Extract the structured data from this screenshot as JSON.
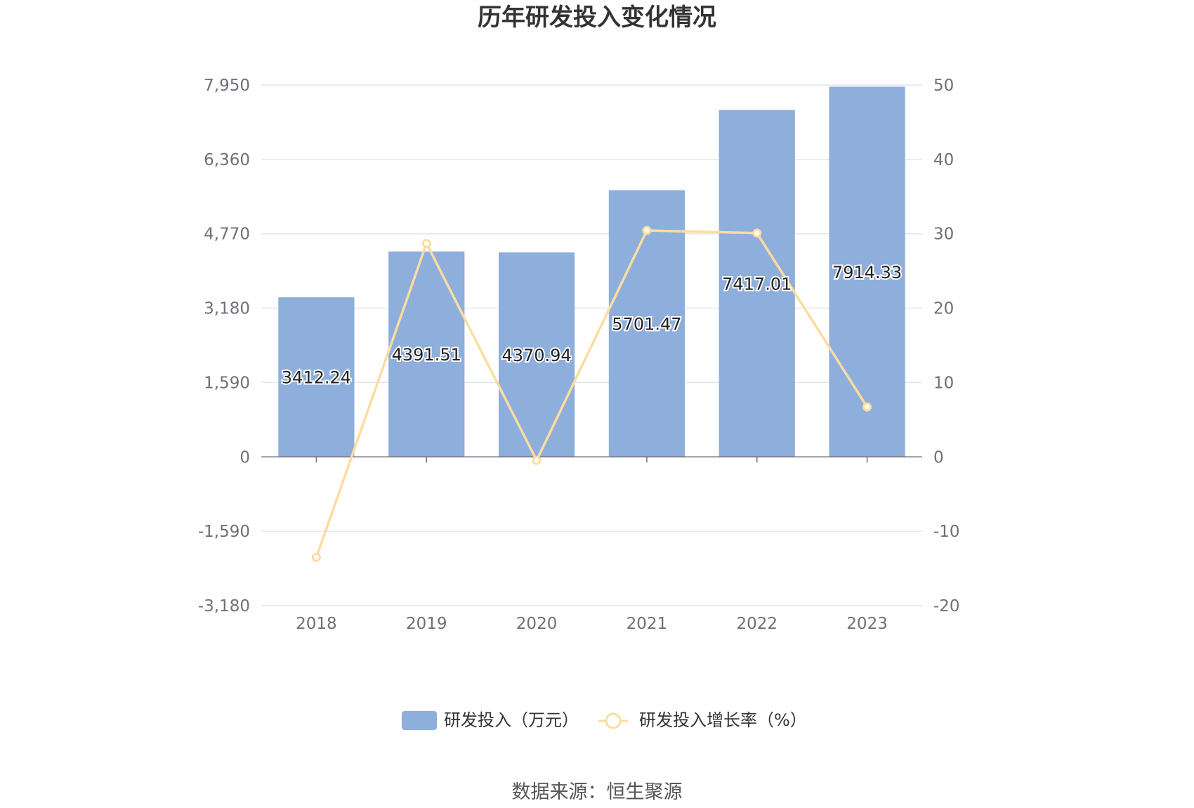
{
  "chart_data": {
    "type": "bar",
    "title": "历年研发投入变化情况",
    "categories": [
      "2018",
      "2019",
      "2020",
      "2021",
      "2022",
      "2023"
    ],
    "series": [
      {
        "name": "研发投入（万元）",
        "type": "bar",
        "axis": "left",
        "color": "#8eaedb",
        "values": [
          3412.24,
          4391.51,
          4370.94,
          5701.47,
          7417.01,
          7914.33
        ],
        "labels": [
          "3412.24",
          "4391.51",
          "4370.94",
          "5701.47",
          "7417.01",
          "7914.33"
        ]
      },
      {
        "name": "研发投入增长率（%）",
        "type": "line",
        "axis": "right",
        "color": "#fddca0",
        "values": [
          -13.5,
          28.7,
          -0.47,
          30.44,
          30.09,
          6.71
        ]
      }
    ],
    "y_left": {
      "range": [
        -3180,
        7950
      ],
      "ticks": [
        -3180,
        -1590,
        0,
        1590,
        3180,
        4770,
        6360,
        7950
      ],
      "tick_labels": [
        "-3,180",
        "-1,590",
        "0",
        "1,590",
        "3,180",
        "4,770",
        "6,360",
        "7,950"
      ]
    },
    "y_right": {
      "range": [
        -20,
        50
      ],
      "ticks": [
        -20,
        -10,
        0,
        10,
        20,
        30,
        40,
        50
      ],
      "tick_labels": [
        "-20",
        "-10",
        "0",
        "10",
        "20",
        "30",
        "40",
        "50"
      ]
    },
    "grid": true,
    "legend_position": "bottom-center",
    "colors": {
      "bar": "#8eaedb",
      "line": "#fddca0",
      "grid": "#e0e6f1",
      "axis": "#6e7079"
    }
  },
  "source": "数据来源：恒生聚源"
}
